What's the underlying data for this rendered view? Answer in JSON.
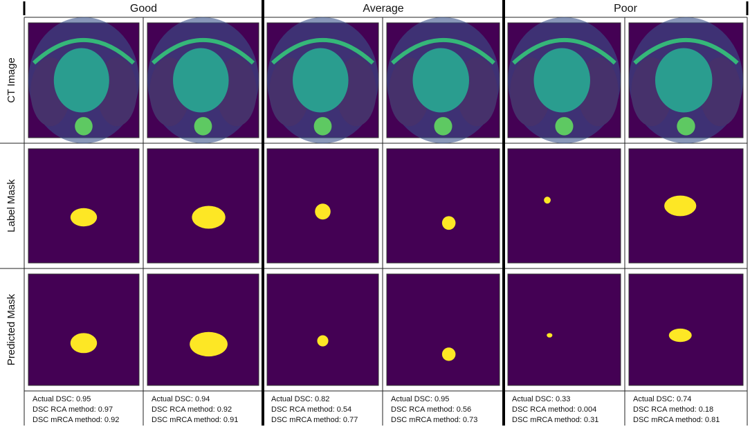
{
  "groups": [
    "Good",
    "Average",
    "Poor"
  ],
  "rows": [
    "CT Image",
    "Label Mask",
    "Predicted Mask"
  ],
  "captions": [
    [
      "Actual DSC: 0.95",
      "DSC RCA method: 0.97",
      "DSC mRCA method: 0.92"
    ],
    [
      "Actual DSC: 0.94",
      "DSC RCA method: 0.92",
      "DSC mRCA method: 0.91"
    ],
    [
      "Actual DSC: 0.82",
      "DSC RCA method: 0.54",
      "DSC mRCA method: 0.77"
    ],
    [
      "Actual DSC: 0.95",
      "DSC RCA method: 0.56",
      "DSC mRCA method: 0.73"
    ],
    [
      "Actual DSC:  0.33",
      "DSC RCA method: 0.004",
      "DSC mRCA method: 0.31"
    ],
    [
      "Actual DSC: 0.74",
      "DSC RCA method: 0.18",
      "DSC mRCA method: 0.81"
    ]
  ]
}
